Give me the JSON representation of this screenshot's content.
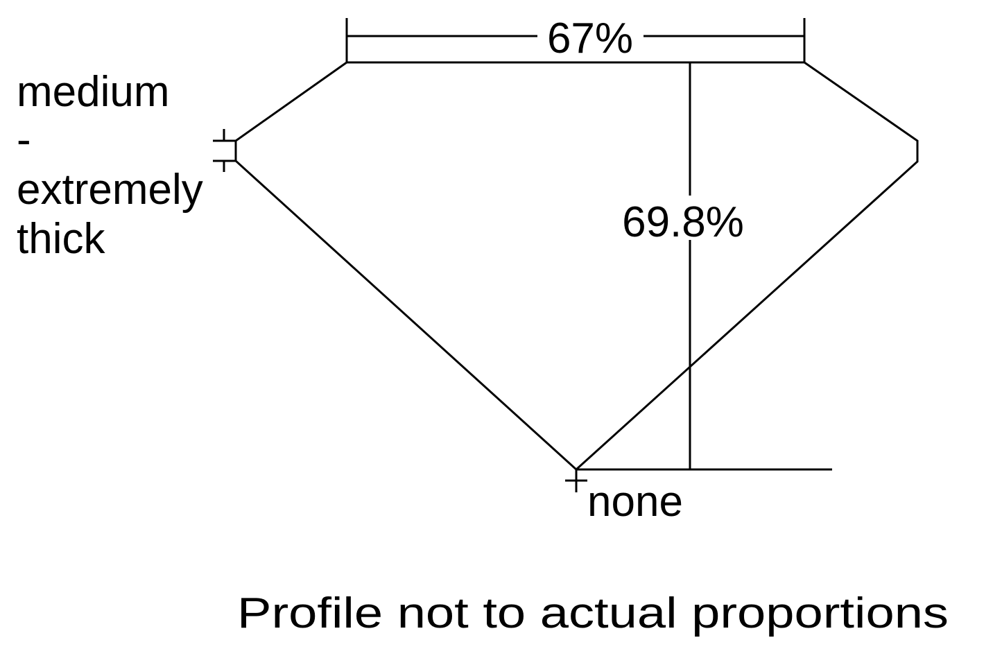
{
  "table_percent": "67%",
  "depth_percent": "69.8%",
  "girdle_label_lines": [
    "medium",
    "-",
    "extremely",
    "thick"
  ],
  "culet_label": "none",
  "caption": "Profile not to actual proportions",
  "colors": {
    "stroke": "#000000",
    "background": "#ffffff"
  }
}
